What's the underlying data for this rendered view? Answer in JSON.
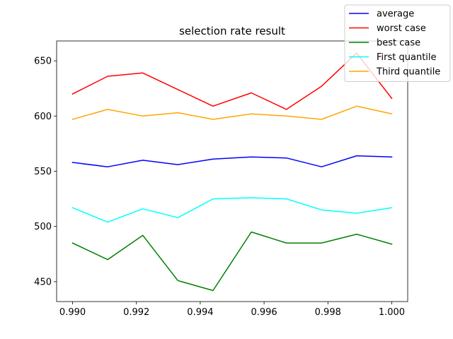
{
  "chart_data": {
    "type": "line",
    "title": "selection rate result",
    "xlabel": "",
    "ylabel": "",
    "xlim": [
      0.9895,
      1.0005
    ],
    "ylim": [
      432,
      668
    ],
    "xticks": [
      0.99,
      0.992,
      0.994,
      0.996,
      0.998,
      1.0
    ],
    "xtick_labels": [
      "0.990",
      "0.992",
      "0.994",
      "0.996",
      "0.998",
      "1.000"
    ],
    "yticks": [
      450,
      500,
      550,
      600,
      650
    ],
    "ytick_labels": [
      "450",
      "500",
      "550",
      "600",
      "650"
    ],
    "grid": false,
    "legend_position": "top-right",
    "x": [
      0.99,
      0.9911,
      0.9922,
      0.9933,
      0.9944,
      0.9956,
      0.9967,
      0.9978,
      0.9989,
      1.0
    ],
    "series": [
      {
        "name": "average",
        "color": "#0000ff",
        "values": [
          558,
          554,
          560,
          556,
          561,
          563,
          562,
          554,
          564,
          563
        ]
      },
      {
        "name": "worst case",
        "color": "#ff0000",
        "values": [
          620,
          636,
          639,
          624,
          609,
          621,
          606,
          627,
          657,
          616
        ]
      },
      {
        "name": "best case",
        "color": "#008000",
        "values": [
          485,
          470,
          492,
          451,
          442,
          495,
          485,
          485,
          493,
          484
        ]
      },
      {
        "name": "First quantile",
        "color": "#00ffff",
        "values": [
          517,
          504,
          516,
          508,
          525,
          526,
          525,
          515,
          512,
          517
        ]
      },
      {
        "name": "Third quantile",
        "color": "#ffa500",
        "values": [
          597,
          606,
          600,
          603,
          597,
          602,
          600,
          597,
          609,
          602
        ]
      }
    ]
  }
}
